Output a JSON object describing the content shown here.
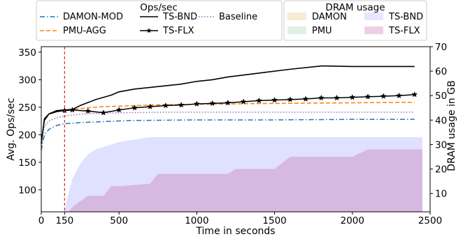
{
  "chart_data": {
    "type": "line",
    "xlabel": "Time in seconds",
    "ylabel_left": "Avg. Ops/sec",
    "ylabel_right": "DRAM usage in GB",
    "xlim": [
      0,
      2500
    ],
    "ylim_left": [
      60,
      360
    ],
    "ylim_right": [
      2.5,
      70
    ],
    "x_ticks": [
      0,
      150,
      500,
      1000,
      1500,
      2000,
      2500
    ],
    "y_ticks_left": [
      100,
      150,
      200,
      250,
      300,
      350
    ],
    "y_ticks_right": [
      10,
      20,
      30,
      40,
      50,
      60,
      70
    ],
    "vline_x": 150,
    "grid": false,
    "legend_ops": {
      "title": "Ops/sec",
      "entries": [
        "DAMON-MOD",
        "PMU-AGG",
        "TS-BND",
        "TS-FLX",
        "Baseline"
      ]
    },
    "legend_dram": {
      "title": "DRAM usage",
      "entries": [
        "DAMON",
        "PMU",
        "TS-BND",
        "TS-FLX"
      ]
    },
    "series": [
      {
        "name": "DAMON-MOD",
        "color": "#1f77b4",
        "style": "dashdot",
        "axis": "left",
        "x": [
          0,
          20,
          50,
          100,
          150,
          250,
          400,
          600,
          1000,
          1500,
          2000,
          2400
        ],
        "y": [
          172,
          200,
          210,
          217,
          220,
          222,
          224,
          226,
          227,
          227,
          228,
          228
        ]
      },
      {
        "name": "PMU-AGG",
        "color": "#ff7f0e",
        "style": "dashed",
        "axis": "left",
        "x": [
          0,
          20,
          50,
          100,
          150,
          200,
          300,
          400,
          500,
          700,
          900,
          1200,
          1500,
          2000,
          2400
        ],
        "y": [
          185,
          228,
          237,
          242,
          244,
          246,
          249,
          251,
          252,
          254,
          255,
          256,
          257,
          258,
          259
        ]
      },
      {
        "name": "TS-BND",
        "color": "#000000",
        "style": "solid",
        "axis": "left",
        "x": [
          0,
          20,
          50,
          100,
          150,
          200,
          250,
          350,
          450,
          500,
          600,
          800,
          900,
          1000,
          1100,
          1200,
          1400,
          1600,
          1800,
          1830,
          2000,
          2400
        ],
        "y": [
          183,
          229,
          238,
          244,
          245,
          246,
          253,
          264,
          272,
          278,
          283,
          289,
          292,
          297,
          300,
          305,
          312,
          319,
          325,
          325,
          324,
          324
        ]
      },
      {
        "name": "TS-FLX",
        "color": "#000000",
        "style": "solid",
        "marker": "star",
        "axis": "left",
        "x": [
          0,
          20,
          50,
          100,
          150,
          200,
          300,
          400,
          500,
          600,
          700,
          800,
          900,
          1000,
          1100,
          1200,
          1300,
          1400,
          1500,
          1600,
          1700,
          1800,
          1900,
          2000,
          2100,
          2200,
          2300,
          2400
        ],
        "y": [
          187,
          226,
          238,
          242,
          244,
          245,
          243,
          240,
          245,
          249,
          251,
          253,
          254,
          256,
          257,
          258,
          260,
          262,
          263,
          264,
          265,
          267,
          267,
          268,
          269,
          270,
          271,
          273
        ]
      },
      {
        "name": "Baseline",
        "color": "#9467bd",
        "style": "dotted",
        "axis": "left",
        "x": [
          0,
          20,
          50,
          100,
          150,
          200,
          300,
          500,
          800,
          1200,
          2000,
          2400
        ],
        "y": [
          178,
          215,
          225,
          231,
          234,
          236,
          238,
          240,
          241,
          241,
          241,
          241
        ]
      }
    ],
    "dram_areas": [
      {
        "name": "TS-BND",
        "color": "#ccccff",
        "opacity": 0.6,
        "axis": "right",
        "x": [
          150,
          175,
          200,
          250,
          300,
          350,
          400,
          450,
          500,
          600,
          700,
          1000,
          1500,
          2000,
          2450
        ],
        "y": [
          3,
          10,
          16,
          22,
          26,
          28,
          29,
          30,
          31,
          32,
          33,
          33,
          33,
          33,
          33
        ]
      },
      {
        "name": "TS-FLX",
        "color": "#cc88bb",
        "opacity": 0.45,
        "axis": "right",
        "x": [
          180,
          210,
          300,
          400,
          450,
          510,
          700,
          750,
          1000,
          1200,
          1250,
          1500,
          1600,
          1700,
          2000,
          2100,
          2450
        ],
        "y": [
          3,
          5,
          9,
          9,
          13,
          13,
          14,
          18,
          18,
          18,
          20,
          20,
          25,
          25,
          25,
          28,
          28
        ]
      }
    ]
  }
}
